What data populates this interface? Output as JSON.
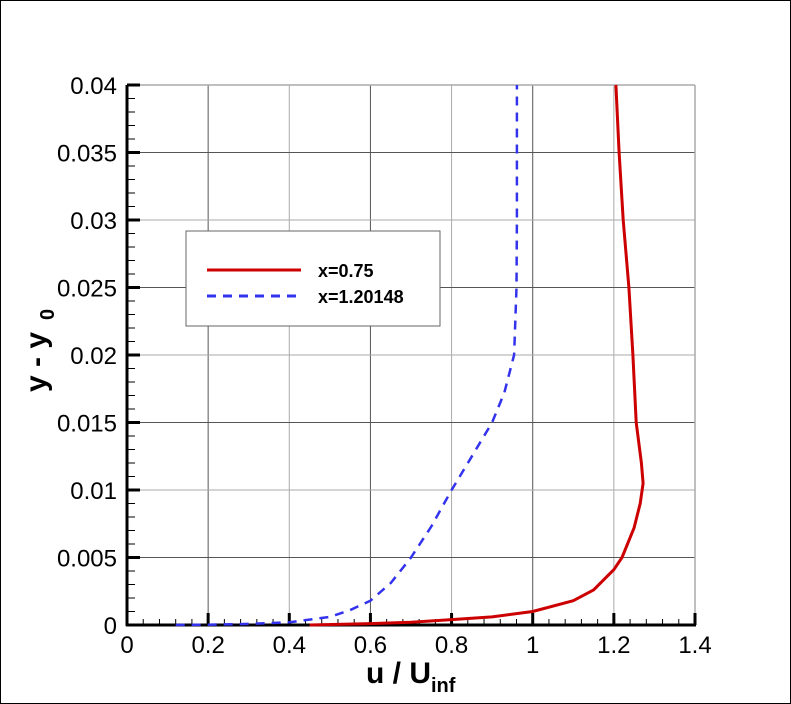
{
  "chart_data": {
    "type": "line",
    "title": "",
    "xlabel": "u / U",
    "xlabel_subscript": "inf",
    "ylabel": "y - y",
    "ylabel_subscript": "0",
    "xlim": [
      0,
      1.4
    ],
    "ylim": [
      0,
      0.04
    ],
    "grid": true,
    "legend_position": "upper-left (inside plot, boxed)",
    "x_ticks": [
      "0",
      "0.2",
      "0.4",
      "0.6",
      "0.8",
      "1",
      "1.2",
      "1.4"
    ],
    "x_tick_values": [
      0,
      0.2,
      0.4,
      0.6,
      0.8,
      1.0,
      1.2,
      1.4
    ],
    "y_ticks": [
      "0",
      "0.005",
      "0.01",
      "0.015",
      "0.02",
      "0.025",
      "0.03",
      "0.035",
      "0.04"
    ],
    "y_tick_values": [
      0,
      0.005,
      0.01,
      0.015,
      0.02,
      0.025,
      0.03,
      0.035,
      0.04
    ],
    "series": [
      {
        "name": "x=0.75",
        "color": "#cc0000",
        "style": "solid",
        "x": [
          0.45,
          0.6,
          0.7,
          0.8,
          0.9,
          1.0,
          1.1,
          1.15,
          1.2,
          1.22,
          1.25,
          1.265,
          1.272,
          1.268,
          1.255,
          1.247,
          1.237,
          1.223,
          1.213,
          1.205
        ],
        "y": [
          0.0,
          0.0001,
          0.0002,
          0.0004,
          0.0006,
          0.001,
          0.0018,
          0.0026,
          0.0041,
          0.005,
          0.0072,
          0.009,
          0.0105,
          0.012,
          0.015,
          0.02,
          0.025,
          0.03,
          0.035,
          0.04
        ]
      },
      {
        "name": "x=1.20148",
        "color": "#3333ee",
        "style": "dashed",
        "x": [
          0.12,
          0.2,
          0.3,
          0.4,
          0.5,
          0.55,
          0.6,
          0.65,
          0.7,
          0.75,
          0.8,
          0.85,
          0.9,
          0.93,
          0.954,
          0.96,
          0.961,
          0.961
        ],
        "y": [
          0.0,
          2e-05,
          8e-05,
          0.0002,
          0.0006,
          0.0011,
          0.0018,
          0.0031,
          0.005,
          0.0073,
          0.01,
          0.0125,
          0.015,
          0.0172,
          0.02,
          0.025,
          0.03,
          0.04
        ]
      }
    ]
  },
  "legend": {
    "items": [
      {
        "label": "x=0.75",
        "color": "#cc0000",
        "style": "solid"
      },
      {
        "label": "x=1.20148",
        "color": "#3333ee",
        "style": "dashed"
      }
    ]
  },
  "axes": {
    "x_title": "u / U",
    "x_title_sub": "inf",
    "y_title": "y - y",
    "y_title_sub": "0"
  }
}
